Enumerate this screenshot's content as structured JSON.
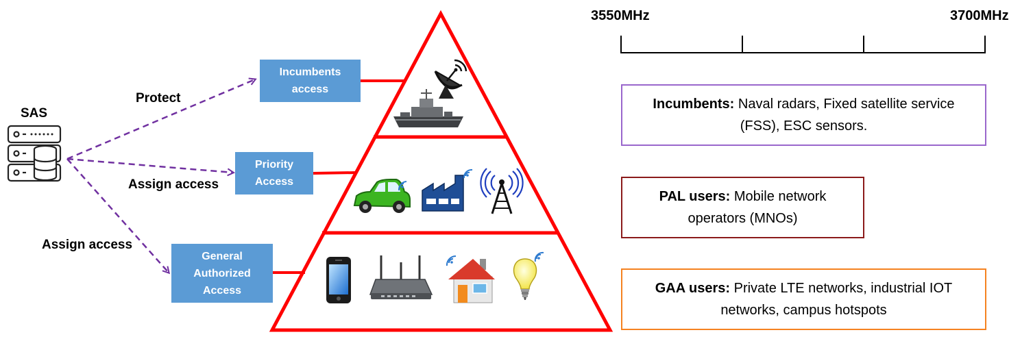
{
  "sas": {
    "label": "SAS"
  },
  "arrows": {
    "protect": "Protect",
    "assign_priority": "Assign access",
    "assign_general": "Assign access"
  },
  "tiers": {
    "incumbents": {
      "line1": "Incumbents",
      "line2": "access"
    },
    "priority": {
      "line1": "Priority",
      "line2": "Access"
    },
    "general": {
      "line1": "General",
      "line2": "Authorized",
      "line3": "Access"
    }
  },
  "spectrum": {
    "start": "3550MHz",
    "end": "3700MHz"
  },
  "descriptions": {
    "incumbents": {
      "head": "Incumbents:",
      "text1": " Naval radars, Fixed satellite service",
      "text2": "(FSS), ESC sensors."
    },
    "pal": {
      "head": "PAL users:",
      "text1": " Mobile network",
      "text2": "operators (MNOs)"
    },
    "gaa": {
      "head": "GAA users:",
      "text1": " Private LTE networks, industrial IOT",
      "text2": "networks, campus hotspots"
    }
  },
  "colors": {
    "pyramid": "#ff0000",
    "tier_box": "#5b9bd5",
    "arrow": "#7030a0",
    "incumbents_border": "#9966cc",
    "pal_border": "#8b1a1a",
    "gaa_border": "#f58220"
  },
  "icons": [
    "satellite-dish-icon",
    "naval-ship-icon",
    "car-icon",
    "factory-icon",
    "cell-tower-icon",
    "smartphone-icon",
    "router-icon",
    "house-icon",
    "lightbulb-icon",
    "server-icon"
  ]
}
